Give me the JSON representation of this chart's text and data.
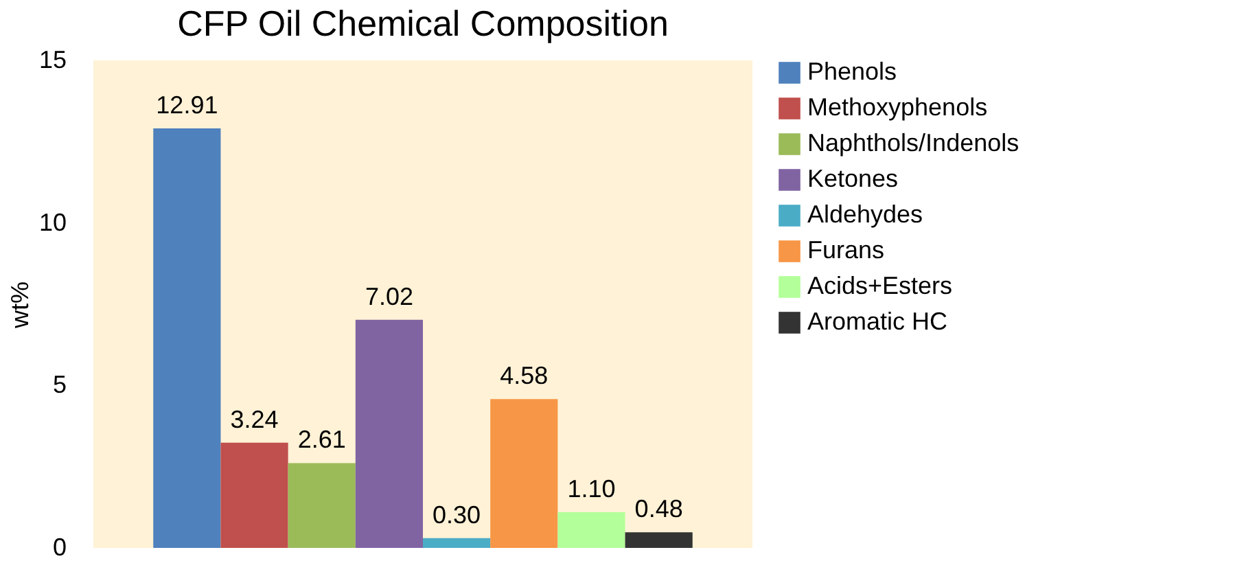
{
  "chart_data": {
    "type": "bar",
    "title": "CFP Oil Chemical Composition",
    "ylabel": "wt%",
    "categories": [
      null
    ],
    "series": [
      {
        "name": "Phenols",
        "color": "#4f81bd",
        "values": [
          12.91
        ],
        "value_labels": [
          "12.91"
        ]
      },
      {
        "name": "Methoxyphenols",
        "color": "#c0504d",
        "values": [
          3.24
        ],
        "value_labels": [
          "3.24"
        ]
      },
      {
        "name": "Naphthols/Indenols",
        "color": "#9bbb59",
        "values": [
          2.61
        ],
        "value_labels": [
          "2.61"
        ]
      },
      {
        "name": "Ketones",
        "color": "#8064a2",
        "values": [
          7.02
        ],
        "value_labels": [
          "7.02"
        ]
      },
      {
        "name": "Aldehydes",
        "color": "#4bacc6",
        "values": [
          0.3
        ],
        "value_labels": [
          "0.30"
        ]
      },
      {
        "name": "Furans",
        "color": "#f79646",
        "values": [
          4.58
        ],
        "value_labels": [
          "4.58"
        ]
      },
      {
        "name": "Acids+Esters",
        "color": "#b3ff99",
        "values": [
          1.1
        ],
        "value_labels": [
          "1.10"
        ]
      },
      {
        "name": "Aromatic HC",
        "color": "#333333",
        "values": [
          0.48
        ],
        "value_labels": [
          "0.48"
        ]
      }
    ],
    "ylim": [
      0,
      15
    ],
    "yticks": [
      0,
      5,
      10,
      15
    ],
    "legend": "right",
    "grid": false
  }
}
